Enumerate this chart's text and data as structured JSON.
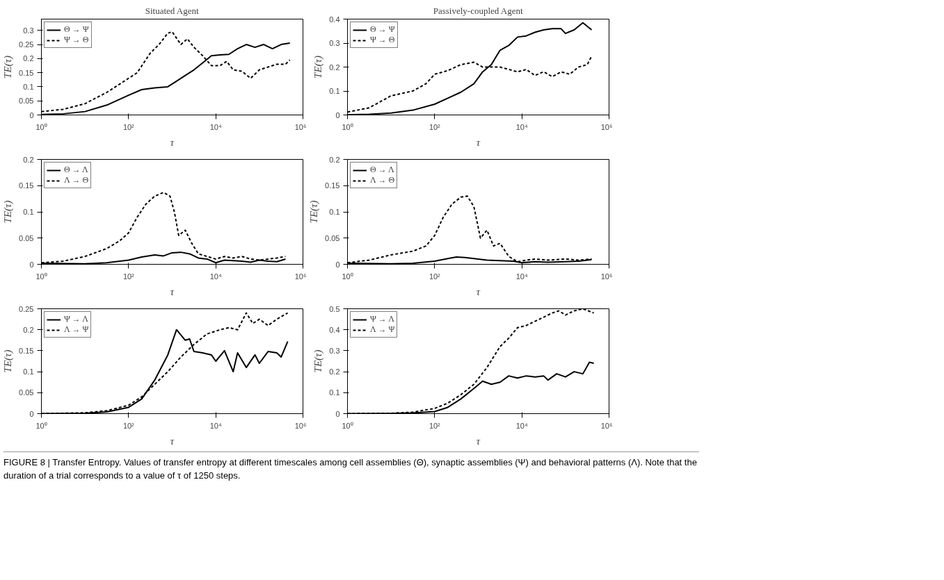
{
  "chart_data": [
    {
      "type": "line",
      "log": "x",
      "title": "Situated Agent",
      "xlabel": "τ",
      "ylabel": "TE(τ)",
      "legend": "top left",
      "grid": false,
      "xlim": [
        1,
        1000000
      ],
      "ylim": [
        0,
        0.34
      ],
      "xticks": [
        {
          "value": 1,
          "label": "10⁰"
        },
        {
          "value": 100,
          "label": "10²"
        },
        {
          "value": 10000,
          "label": "10⁴"
        },
        {
          "value": 1000000,
          "label": "10⁶"
        }
      ],
      "yticks": [
        0,
        0.05,
        0.1,
        0.15,
        0.2,
        0.25,
        0.3
      ],
      "annotations": [
        "FIGURE 8 | Transfer Entropy. Values of transfer entropy at different timescales among cell assemblies (Θ), synaptic assemblies (Ψ) and behavioral patterns (Λ). Note that the duration of a trial corresponds to a value of τ of 1250 steps."
      ],
      "series": [
        {
          "name": "Θ → Ψ",
          "color": "#000000",
          "line_style": "solid",
          "x": [
            1,
            3.16,
            10,
            31.6,
            100,
            200,
            398,
            794,
            1259,
            1995,
            3162,
            5012,
            7943,
            12589,
            19953,
            31623,
            50119,
            79433,
            125893,
            199526,
            316228,
            501187
          ],
          "values": [
            0.002,
            0.004,
            0.012,
            0.035,
            0.07,
            0.09,
            0.096,
            0.1,
            0.12,
            0.14,
            0.16,
            0.185,
            0.21,
            0.213,
            0.215,
            0.235,
            0.25,
            0.24,
            0.25,
            0.235,
            0.25,
            0.255
          ]
        },
        {
          "name": "Ψ → Θ",
          "color": "#000000",
          "line_style": "dashed",
          "x": [
            1,
            3.16,
            10,
            31.6,
            63.1,
            100,
            158,
            316,
            501,
            794,
            1000,
            1585,
            2239,
            3162,
            5012,
            7943,
            12589,
            17783,
            25119,
            39811,
            63096,
            100000,
            158489,
            251189,
            398107,
            501187
          ],
          "values": [
            0.012,
            0.02,
            0.04,
            0.08,
            0.11,
            0.13,
            0.15,
            0.22,
            0.25,
            0.29,
            0.295,
            0.25,
            0.27,
            0.24,
            0.21,
            0.175,
            0.175,
            0.19,
            0.16,
            0.155,
            0.13,
            0.16,
            0.17,
            0.18,
            0.18,
            0.195
          ]
        }
      ]
    },
    {
      "type": "line",
      "log": "x",
      "title": "Passively-coupled Agent",
      "xlabel": "τ",
      "ylabel": "TE(τ)",
      "legend": "top left",
      "grid": false,
      "xlim": [
        1,
        1000000
      ],
      "ylim": [
        0,
        0.4
      ],
      "xticks": [
        {
          "value": 1,
          "label": "10⁰"
        },
        {
          "value": 100,
          "label": "10²"
        },
        {
          "value": 10000,
          "label": "10⁴"
        },
        {
          "value": 1000000,
          "label": "10⁶"
        }
      ],
      "yticks": [
        0,
        0.1,
        0.2,
        0.3,
        0.4
      ],
      "series": [
        {
          "name": "Θ → Ψ",
          "color": "#000000",
          "line_style": "solid",
          "x": [
            1,
            3.16,
            10,
            31.6,
            100,
            200,
            398,
            794,
            1259,
            1995,
            3162,
            5012,
            7943,
            12589,
            19953,
            31623,
            50119,
            79433,
            100000,
            158489,
            251189,
            398107
          ],
          "values": [
            0.001,
            0.003,
            0.008,
            0.02,
            0.045,
            0.07,
            0.095,
            0.13,
            0.18,
            0.21,
            0.27,
            0.29,
            0.325,
            0.33,
            0.345,
            0.355,
            0.36,
            0.36,
            0.34,
            0.355,
            0.385,
            0.355
          ]
        },
        {
          "name": "Ψ → Θ",
          "color": "#000000",
          "line_style": "dashed",
          "x": [
            1,
            3.16,
            10,
            31.6,
            63.1,
            100,
            200,
            398,
            794,
            1259,
            1995,
            3162,
            5012,
            7943,
            12589,
            19953,
            31623,
            50119,
            79433,
            125893,
            199526,
            316228,
            398107
          ],
          "values": [
            0.012,
            0.03,
            0.08,
            0.1,
            0.13,
            0.17,
            0.185,
            0.21,
            0.22,
            0.2,
            0.2,
            0.2,
            0.19,
            0.18,
            0.19,
            0.165,
            0.18,
            0.16,
            0.18,
            0.17,
            0.2,
            0.21,
            0.245
          ]
        }
      ]
    },
    {
      "type": "line",
      "xlabel": "τ",
      "ylabel": "TE(τ)",
      "legend": "top left",
      "grid": false,
      "xlim": [
        1,
        1000000
      ],
      "ylim": [
        0,
        0.2
      ],
      "xticks": [
        {
          "value": 1,
          "label": "10⁰"
        },
        {
          "value": 100,
          "label": "10²"
        },
        {
          "value": 10000,
          "label": "10⁴"
        },
        {
          "value": 1000000,
          "label": "10⁶"
        }
      ],
      "yticks": [
        0,
        0.05,
        0.1,
        0.15,
        0.2
      ],
      "log": "x",
      "series": [
        {
          "name": "Θ → Λ",
          "color": "#000000",
          "line_style": "solid",
          "x": [
            1,
            10,
            31.6,
            100,
            200,
            398,
            631,
            1000,
            1585,
            2512,
            3981,
            6310,
            10000,
            15849,
            25119,
            39811,
            63096,
            100000,
            158489,
            251189,
            398107
          ],
          "values": [
            0.002,
            0.001,
            0.003,
            0.008,
            0.014,
            0.018,
            0.016,
            0.022,
            0.023,
            0.02,
            0.012,
            0.01,
            0.003,
            0.008,
            0.007,
            0.006,
            0.004,
            0.008,
            0.006,
            0.005,
            0.01
          ]
        },
        {
          "name": "Λ → Θ",
          "color": "#000000",
          "line_style": "dashed",
          "x": [
            1,
            3.16,
            10,
            31.6,
            63.1,
            100,
            158,
            251,
            398,
            631,
            891,
            1122,
            1413,
            1995,
            2818,
            3981,
            6310,
            10000,
            15849,
            25119,
            39811,
            63096,
            100000,
            158489,
            251189,
            398107
          ],
          "values": [
            0.003,
            0.006,
            0.015,
            0.03,
            0.045,
            0.06,
            0.09,
            0.115,
            0.13,
            0.137,
            0.13,
            0.1,
            0.055,
            0.065,
            0.04,
            0.02,
            0.015,
            0.01,
            0.015,
            0.012,
            0.015,
            0.01,
            0.008,
            0.01,
            0.012,
            0.015
          ]
        }
      ]
    },
    {
      "type": "line",
      "xlabel": "τ",
      "ylabel": "TE(τ)",
      "legend": "top left",
      "grid": false,
      "xlim": [
        1,
        1000000
      ],
      "ylim": [
        0,
        0.2
      ],
      "xticks": [
        {
          "value": 1,
          "label": "10⁰"
        },
        {
          "value": 100,
          "label": "10²"
        },
        {
          "value": 10000,
          "label": "10⁴"
        },
        {
          "value": 1000000,
          "label": "10⁶"
        }
      ],
      "yticks": [
        0,
        0.05,
        0.1,
        0.15,
        0.2
      ],
      "log": "x",
      "series": [
        {
          "name": "Θ → Λ",
          "color": "#000000",
          "line_style": "solid",
          "x": [
            1,
            10,
            31.6,
            100,
            200,
            316,
            501,
            794,
            1585,
            3162,
            6310,
            10000,
            19953,
            39811,
            100000,
            199526,
            398107
          ],
          "values": [
            0.002,
            0.001,
            0.002,
            0.006,
            0.011,
            0.014,
            0.013,
            0.011,
            0.008,
            0.007,
            0.006,
            0.003,
            0.005,
            0.004,
            0.005,
            0.006,
            0.009
          ]
        },
        {
          "name": "Λ → Θ",
          "color": "#000000",
          "line_style": "dashed",
          "x": [
            1,
            3.16,
            10,
            31.6,
            63.1,
            100,
            158,
            251,
            398,
            562,
            794,
            1122,
            1585,
            2239,
            3162,
            5012,
            7943,
            12589,
            19953,
            39811,
            100000,
            199526,
            398107
          ],
          "values": [
            0.003,
            0.008,
            0.018,
            0.025,
            0.035,
            0.055,
            0.09,
            0.115,
            0.128,
            0.13,
            0.11,
            0.05,
            0.065,
            0.035,
            0.04,
            0.015,
            0.005,
            0.008,
            0.01,
            0.008,
            0.01,
            0.008,
            0.01
          ]
        }
      ]
    },
    {
      "type": "line",
      "xlabel": "τ",
      "ylabel": "TE(τ)",
      "legend": "top left",
      "grid": false,
      "xlim": [
        1,
        1000000
      ],
      "ylim": [
        0,
        0.25
      ],
      "xticks": [
        {
          "value": 1,
          "label": "10⁰"
        },
        {
          "value": 100,
          "label": "10²"
        },
        {
          "value": 10000,
          "label": "10⁴"
        },
        {
          "value": 1000000,
          "label": "10⁶"
        }
      ],
      "yticks": [
        0,
        0.05,
        0.1,
        0.15,
        0.2,
        0.25
      ],
      "log": "x",
      "series": [
        {
          "name": "Ψ → Λ",
          "color": "#000000",
          "line_style": "solid",
          "x": [
            1,
            10,
            31.6,
            100,
            200,
            398,
            794,
            1259,
            1995,
            2512,
            3162,
            5012,
            7943,
            10000,
            15849,
            25119,
            31623,
            50119,
            79433,
            100000,
            158489,
            251189,
            316228,
            446684
          ],
          "values": [
            0,
            0.001,
            0.004,
            0.015,
            0.035,
            0.08,
            0.14,
            0.2,
            0.175,
            0.178,
            0.148,
            0.145,
            0.14,
            0.125,
            0.15,
            0.1,
            0.145,
            0.11,
            0.14,
            0.12,
            0.148,
            0.145,
            0.135,
            0.172
          ]
        },
        {
          "name": "Λ → Ψ",
          "color": "#000000",
          "line_style": "dashed",
          "x": [
            1,
            10,
            31.6,
            100,
            200,
            398,
            794,
            1585,
            3162,
            6310,
            12589,
            19953,
            31623,
            50119,
            70795,
            100000,
            158489,
            251189,
            446684
          ],
          "values": [
            0,
            0.002,
            0.007,
            0.02,
            0.04,
            0.07,
            0.1,
            0.135,
            0.165,
            0.19,
            0.2,
            0.205,
            0.2,
            0.24,
            0.215,
            0.225,
            0.21,
            0.225,
            0.24
          ]
        }
      ]
    },
    {
      "type": "line",
      "xlabel": "τ",
      "ylabel": "TE(τ)",
      "legend": "top left",
      "grid": false,
      "xlim": [
        1,
        1000000
      ],
      "ylim": [
        0,
        0.5
      ],
      "xticks": [
        {
          "value": 1,
          "label": "10⁰"
        },
        {
          "value": 100,
          "label": "10²"
        },
        {
          "value": 10000,
          "label": "10⁴"
        },
        {
          "value": 1000000,
          "label": "10⁶"
        }
      ],
      "yticks": [
        0,
        0.1,
        0.2,
        0.3,
        0.4,
        0.5
      ],
      "log": "x",
      "series": [
        {
          "name": "Ψ → Λ",
          "color": "#000000",
          "line_style": "solid",
          "x": [
            1,
            10,
            31.6,
            100,
            200,
            398,
            794,
            1259,
            1995,
            3162,
            5012,
            7943,
            12589,
            19953,
            31623,
            39811,
            63096,
            100000,
            158489,
            251189,
            354813,
            446684
          ],
          "values": [
            0,
            0.001,
            0.003,
            0.01,
            0.03,
            0.07,
            0.12,
            0.155,
            0.14,
            0.15,
            0.18,
            0.17,
            0.18,
            0.175,
            0.18,
            0.16,
            0.19,
            0.175,
            0.2,
            0.19,
            0.245,
            0.24
          ]
        },
        {
          "name": "Λ → Ψ",
          "color": "#000000",
          "line_style": "dashed",
          "x": [
            1,
            10,
            31.6,
            100,
            200,
            398,
            794,
            1585,
            3162,
            5012,
            7943,
            12589,
            19953,
            31623,
            50119,
            70795,
            100000,
            158489,
            251189,
            446684
          ],
          "values": [
            0,
            0.002,
            0.007,
            0.025,
            0.05,
            0.09,
            0.14,
            0.22,
            0.32,
            0.36,
            0.41,
            0.42,
            0.44,
            0.46,
            0.48,
            0.49,
            0.47,
            0.49,
            0.5,
            0.48
          ]
        }
      ]
    }
  ]
}
